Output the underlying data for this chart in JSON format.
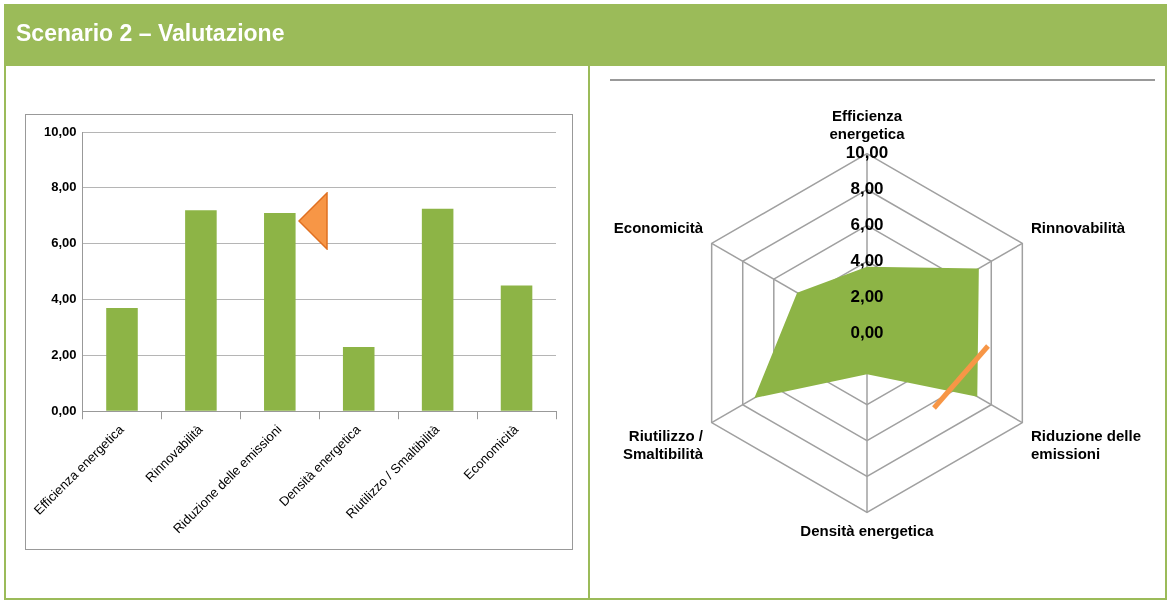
{
  "chart_data": [
    {
      "type": "bar",
      "title": "Scenario 2 – Valutazione",
      "categories": [
        "Efficienza energetica",
        "Rinnovabilità",
        "Riduzione delle emissioni",
        "Densità energetica",
        "Riutilizzo / Smaltibilità",
        "Economicità"
      ],
      "values": [
        3.7,
        7.2,
        7.1,
        2.3,
        7.25,
        4.5
      ],
      "color": "#8db446",
      "ylim": [
        0,
        10
      ],
      "yticks": [
        {
          "value": 0,
          "label": "0,00"
        },
        {
          "value": 2,
          "label": "2,00"
        },
        {
          "value": 4,
          "label": "4,00"
        },
        {
          "value": 6,
          "label": "6,00"
        },
        {
          "value": 8,
          "label": "8,00"
        },
        {
          "value": 10,
          "label": "10,00"
        }
      ],
      "grid": "y",
      "legend": false
    },
    {
      "type": "radar",
      "categories": [
        "Efficienza energetica",
        "Rinnovabilità",
        "Riduzione delle emissioni",
        "Densità energetica",
        "Riutilizzo / Smaltibilità",
        "Economicità"
      ],
      "series": [
        {
          "color": "#8db446",
          "values": [
            3.7,
            7.2,
            7.1,
            2.3,
            7.25,
            4.5
          ]
        }
      ],
      "ylim": [
        0,
        10
      ],
      "yticks": [
        {
          "value": 0,
          "label": "0,00"
        },
        {
          "value": 2,
          "label": "2,00"
        },
        {
          "value": 4,
          "label": "4,00"
        },
        {
          "value": 6,
          "label": "6,00"
        },
        {
          "value": 8,
          "label": "8,00"
        },
        {
          "value": 10,
          "label": "10,00"
        }
      ],
      "grid": true,
      "legend": false
    }
  ]
}
